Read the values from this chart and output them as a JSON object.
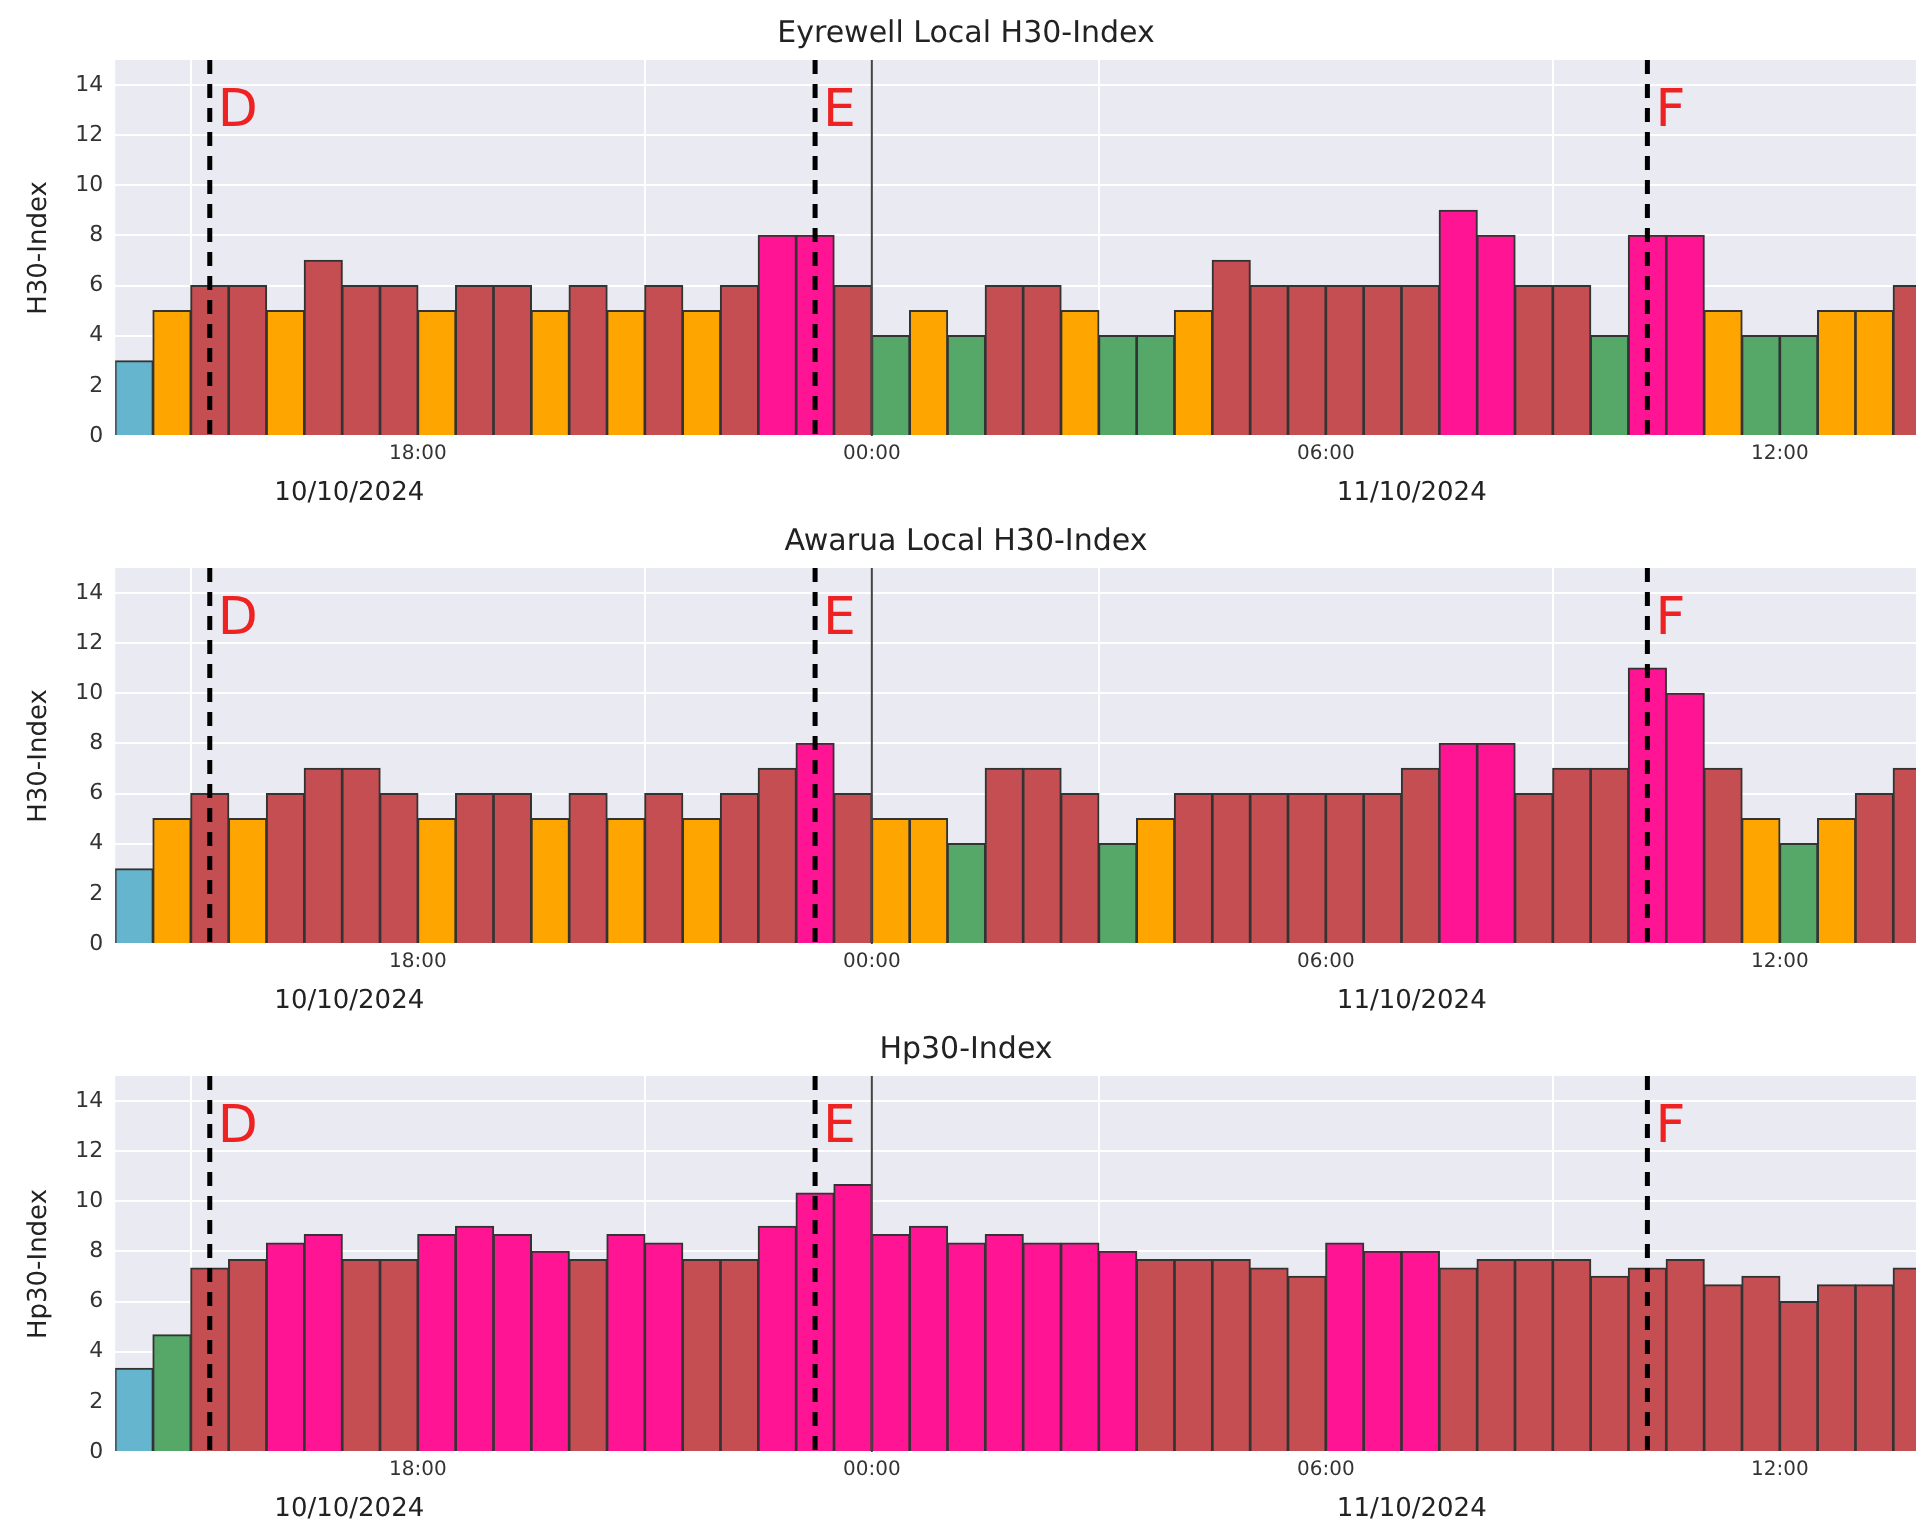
{
  "chart_data": [
    {
      "type": "bar",
      "title": "Eyrewell Local H30-Index",
      "ylabel": "H30-Index",
      "x": [
        "2024-10-10T14:15",
        "2024-10-10T14:45",
        "2024-10-10T15:15",
        "2024-10-10T15:45",
        "2024-10-10T16:15",
        "2024-10-10T16:45",
        "2024-10-10T17:15",
        "2024-10-10T17:45",
        "2024-10-10T18:15",
        "2024-10-10T18:45",
        "2024-10-10T19:15",
        "2024-10-10T19:45",
        "2024-10-10T20:15",
        "2024-10-10T20:45",
        "2024-10-10T21:15",
        "2024-10-10T21:45",
        "2024-10-10T22:15",
        "2024-10-10T22:45",
        "2024-10-10T23:15",
        "2024-10-10T23:45",
        "2024-10-11T00:15",
        "2024-10-11T00:45",
        "2024-10-11T01:15",
        "2024-10-11T01:45",
        "2024-10-11T02:15",
        "2024-10-11T02:45",
        "2024-10-11T03:15",
        "2024-10-11T03:45",
        "2024-10-11T04:15",
        "2024-10-11T04:45",
        "2024-10-11T05:15",
        "2024-10-11T05:45",
        "2024-10-11T06:15",
        "2024-10-11T06:45",
        "2024-10-11T07:15",
        "2024-10-11T07:45",
        "2024-10-11T08:15",
        "2024-10-11T08:45",
        "2024-10-11T09:15",
        "2024-10-11T09:45",
        "2024-10-11T10:15",
        "2024-10-11T10:45",
        "2024-10-11T11:15",
        "2024-10-11T11:45",
        "2024-10-11T12:15",
        "2024-10-11T12:45",
        "2024-10-11T13:15",
        "2024-10-11T13:45"
      ],
      "values": [
        3,
        5,
        6,
        6,
        5,
        7,
        6,
        6,
        5,
        6,
        6,
        5,
        6,
        5,
        6,
        5,
        6,
        8,
        8,
        6,
        4,
        5,
        4,
        6,
        6,
        5,
        4,
        4,
        5,
        7,
        6,
        6,
        6,
        6,
        6,
        9,
        8,
        6,
        6,
        4,
        8,
        8,
        5,
        4,
        4,
        5,
        5,
        6
      ],
      "colors": [
        "#64b5cd",
        "#ffa500",
        "#c44e52",
        "#c44e52",
        "#ffa500",
        "#c44e52",
        "#c44e52",
        "#c44e52",
        "#ffa500",
        "#c44e52",
        "#c44e52",
        "#ffa500",
        "#c44e52",
        "#ffa500",
        "#c44e52",
        "#ffa500",
        "#c44e52",
        "#ff1493",
        "#ff1493",
        "#c44e52",
        "#55a868",
        "#ffa500",
        "#55a868",
        "#c44e52",
        "#c44e52",
        "#ffa500",
        "#55a868",
        "#55a868",
        "#ffa500",
        "#c44e52",
        "#c44e52",
        "#c44e52",
        "#c44e52",
        "#c44e52",
        "#c44e52",
        "#ff1493",
        "#ff1493",
        "#c44e52",
        "#c44e52",
        "#55a868",
        "#ff1493",
        "#ff1493",
        "#ffa500",
        "#55a868",
        "#55a868",
        "#ffa500",
        "#ffa500",
        "#c44e52"
      ],
      "xlim": [
        "2024-10-10T14:00",
        "2024-10-11T13:48"
      ],
      "xticks": [
        {
          "value": "2024-10-10T18:00",
          "label": "18:00"
        },
        {
          "value": "2024-10-11T00:00",
          "label": "00:00"
        },
        {
          "value": "2024-10-11T06:00",
          "label": "06:00"
        },
        {
          "value": "2024-10-11T12:00",
          "label": "12:00"
        }
      ],
      "ylim": [
        0,
        15
      ],
      "yticks": [
        0,
        2,
        4,
        6,
        8,
        10,
        12,
        14
      ],
      "grid": true,
      "ref_lines": [
        {
          "axis": "x",
          "value": "2024-10-10T15:15",
          "label": "D",
          "color": "#000000",
          "line_style": "dashed"
        },
        {
          "axis": "x",
          "value": "2024-10-10T23:15",
          "label": "E",
          "color": "#000000",
          "line_style": "dashed"
        },
        {
          "axis": "x",
          "value": "2024-10-11T10:15",
          "label": "F",
          "color": "#000000",
          "line_style": "dashed"
        },
        {
          "axis": "x",
          "value": "2024-10-11T00:00",
          "color": "#444444",
          "line_style": "solid"
        }
      ],
      "annotations": [
        "10/10/2024",
        "11/10/2024"
      ]
    },
    {
      "type": "bar",
      "title": "Awarua Local H30-Index",
      "ylabel": "H30-Index",
      "x": [
        "2024-10-10T14:15",
        "2024-10-10T14:45",
        "2024-10-10T15:15",
        "2024-10-10T15:45",
        "2024-10-10T16:15",
        "2024-10-10T16:45",
        "2024-10-10T17:15",
        "2024-10-10T17:45",
        "2024-10-10T18:15",
        "2024-10-10T18:45",
        "2024-10-10T19:15",
        "2024-10-10T19:45",
        "2024-10-10T20:15",
        "2024-10-10T20:45",
        "2024-10-10T21:15",
        "2024-10-10T21:45",
        "2024-10-10T22:15",
        "2024-10-10T22:45",
        "2024-10-10T23:15",
        "2024-10-10T23:45",
        "2024-10-11T00:15",
        "2024-10-11T00:45",
        "2024-10-11T01:15",
        "2024-10-11T01:45",
        "2024-10-11T02:15",
        "2024-10-11T02:45",
        "2024-10-11T03:15",
        "2024-10-11T03:45",
        "2024-10-11T04:15",
        "2024-10-11T04:45",
        "2024-10-11T05:15",
        "2024-10-11T05:45",
        "2024-10-11T06:15",
        "2024-10-11T06:45",
        "2024-10-11T07:15",
        "2024-10-11T07:45",
        "2024-10-11T08:15",
        "2024-10-11T08:45",
        "2024-10-11T09:15",
        "2024-10-11T09:45",
        "2024-10-11T10:15",
        "2024-10-11T10:45",
        "2024-10-11T11:15",
        "2024-10-11T11:45",
        "2024-10-11T12:15",
        "2024-10-11T12:45",
        "2024-10-11T13:15",
        "2024-10-11T13:45"
      ],
      "values": [
        3,
        5,
        6,
        5,
        6,
        7,
        7,
        6,
        5,
        6,
        6,
        5,
        6,
        5,
        6,
        5,
        6,
        7,
        8,
        6,
        5,
        5,
        4,
        7,
        7,
        6,
        4,
        5,
        6,
        6,
        6,
        6,
        6,
        6,
        7,
        8,
        8,
        6,
        7,
        7,
        11,
        10,
        7,
        5,
        4,
        5,
        6,
        7
      ],
      "colors": [
        "#64b5cd",
        "#ffa500",
        "#c44e52",
        "#ffa500",
        "#c44e52",
        "#c44e52",
        "#c44e52",
        "#c44e52",
        "#ffa500",
        "#c44e52",
        "#c44e52",
        "#ffa500",
        "#c44e52",
        "#ffa500",
        "#c44e52",
        "#ffa500",
        "#c44e52",
        "#c44e52",
        "#ff1493",
        "#c44e52",
        "#ffa500",
        "#ffa500",
        "#55a868",
        "#c44e52",
        "#c44e52",
        "#c44e52",
        "#55a868",
        "#ffa500",
        "#c44e52",
        "#c44e52",
        "#c44e52",
        "#c44e52",
        "#c44e52",
        "#c44e52",
        "#c44e52",
        "#ff1493",
        "#ff1493",
        "#c44e52",
        "#c44e52",
        "#c44e52",
        "#ff1493",
        "#ff1493",
        "#c44e52",
        "#ffa500",
        "#55a868",
        "#ffa500",
        "#c44e52",
        "#c44e52"
      ],
      "xlim": [
        "2024-10-10T14:00",
        "2024-10-11T13:48"
      ],
      "xticks": [
        {
          "value": "2024-10-10T18:00",
          "label": "18:00"
        },
        {
          "value": "2024-10-11T00:00",
          "label": "00:00"
        },
        {
          "value": "2024-10-11T06:00",
          "label": "06:00"
        },
        {
          "value": "2024-10-11T12:00",
          "label": "12:00"
        }
      ],
      "ylim": [
        0,
        15
      ],
      "yticks": [
        0,
        2,
        4,
        6,
        8,
        10,
        12,
        14
      ],
      "grid": true,
      "ref_lines": [
        {
          "axis": "x",
          "value": "2024-10-10T15:15",
          "label": "D",
          "color": "#000000",
          "line_style": "dashed"
        },
        {
          "axis": "x",
          "value": "2024-10-10T23:15",
          "label": "E",
          "color": "#000000",
          "line_style": "dashed"
        },
        {
          "axis": "x",
          "value": "2024-10-11T10:15",
          "label": "F",
          "color": "#000000",
          "line_style": "dashed"
        },
        {
          "axis": "x",
          "value": "2024-10-11T00:00",
          "color": "#444444",
          "line_style": "solid"
        }
      ],
      "annotations": [
        "10/10/2024",
        "11/10/2024"
      ]
    },
    {
      "type": "bar",
      "title": "Hp30-Index",
      "ylabel": "Hp30-Index",
      "x": [
        "2024-10-10T14:15",
        "2024-10-10T14:45",
        "2024-10-10T15:15",
        "2024-10-10T15:45",
        "2024-10-10T16:15",
        "2024-10-10T16:45",
        "2024-10-10T17:15",
        "2024-10-10T17:45",
        "2024-10-10T18:15",
        "2024-10-10T18:45",
        "2024-10-10T19:15",
        "2024-10-10T19:45",
        "2024-10-10T20:15",
        "2024-10-10T20:45",
        "2024-10-10T21:15",
        "2024-10-10T21:45",
        "2024-10-10T22:15",
        "2024-10-10T22:45",
        "2024-10-10T23:15",
        "2024-10-10T23:45",
        "2024-10-11T00:15",
        "2024-10-11T00:45",
        "2024-10-11T01:15",
        "2024-10-11T01:45",
        "2024-10-11T02:15",
        "2024-10-11T02:45",
        "2024-10-11T03:15",
        "2024-10-11T03:45",
        "2024-10-11T04:15",
        "2024-10-11T04:45",
        "2024-10-11T05:15",
        "2024-10-11T05:45",
        "2024-10-11T06:15",
        "2024-10-11T06:45",
        "2024-10-11T07:15",
        "2024-10-11T07:45",
        "2024-10-11T08:15",
        "2024-10-11T08:45",
        "2024-10-11T09:15",
        "2024-10-11T09:45",
        "2024-10-11T10:15",
        "2024-10-11T10:45",
        "2024-10-11T11:15",
        "2024-10-11T11:45",
        "2024-10-11T12:15",
        "2024-10-11T12:45",
        "2024-10-11T13:15",
        "2024-10-11T13:45"
      ],
      "values": [
        3.33,
        4.67,
        7.33,
        7.67,
        8.33,
        8.67,
        7.67,
        7.67,
        8.67,
        9,
        8.67,
        8,
        7.67,
        8.67,
        8.33,
        7.67,
        7.67,
        9,
        10.33,
        10.67,
        8.67,
        9,
        8.33,
        8.67,
        8.33,
        8.33,
        8,
        7.67,
        7.67,
        7.67,
        7.33,
        7,
        8.33,
        8,
        8,
        7.33,
        7.67,
        7.67,
        7.67,
        7,
        7.33,
        7.67,
        6.67,
        7,
        6,
        6.67,
        6.67,
        7.33
      ],
      "colors": [
        "#64b5cd",
        "#55a868",
        "#c44e52",
        "#c44e52",
        "#ff1493",
        "#ff1493",
        "#c44e52",
        "#c44e52",
        "#ff1493",
        "#ff1493",
        "#ff1493",
        "#ff1493",
        "#c44e52",
        "#ff1493",
        "#ff1493",
        "#c44e52",
        "#c44e52",
        "#ff1493",
        "#ff1493",
        "#ff1493",
        "#ff1493",
        "#ff1493",
        "#ff1493",
        "#ff1493",
        "#ff1493",
        "#ff1493",
        "#ff1493",
        "#c44e52",
        "#c44e52",
        "#c44e52",
        "#c44e52",
        "#c44e52",
        "#ff1493",
        "#ff1493",
        "#ff1493",
        "#c44e52",
        "#c44e52",
        "#c44e52",
        "#c44e52",
        "#c44e52",
        "#c44e52",
        "#c44e52",
        "#c44e52",
        "#c44e52",
        "#c44e52",
        "#c44e52",
        "#c44e52",
        "#c44e52"
      ],
      "xlim": [
        "2024-10-10T14:00",
        "2024-10-11T13:48"
      ],
      "xticks": [
        {
          "value": "2024-10-10T18:00",
          "label": "18:00"
        },
        {
          "value": "2024-10-11T00:00",
          "label": "00:00"
        },
        {
          "value": "2024-10-11T06:00",
          "label": "06:00"
        },
        {
          "value": "2024-10-11T12:00",
          "label": "12:00"
        }
      ],
      "ylim": [
        0,
        15
      ],
      "yticks": [
        0,
        2,
        4,
        6,
        8,
        10,
        12,
        14
      ],
      "grid": true,
      "ref_lines": [
        {
          "axis": "x",
          "value": "2024-10-10T15:15",
          "label": "D",
          "color": "#000000",
          "line_style": "dashed"
        },
        {
          "axis": "x",
          "value": "2024-10-10T23:15",
          "label": "E",
          "color": "#000000",
          "line_style": "dashed"
        },
        {
          "axis": "x",
          "value": "2024-10-11T10:15",
          "label": "F",
          "color": "#000000",
          "line_style": "dashed"
        },
        {
          "axis": "x",
          "value": "2024-10-11T00:00",
          "color": "#444444",
          "line_style": "solid"
        }
      ],
      "annotations": [
        "10/10/2024",
        "11/10/2024"
      ]
    }
  ]
}
